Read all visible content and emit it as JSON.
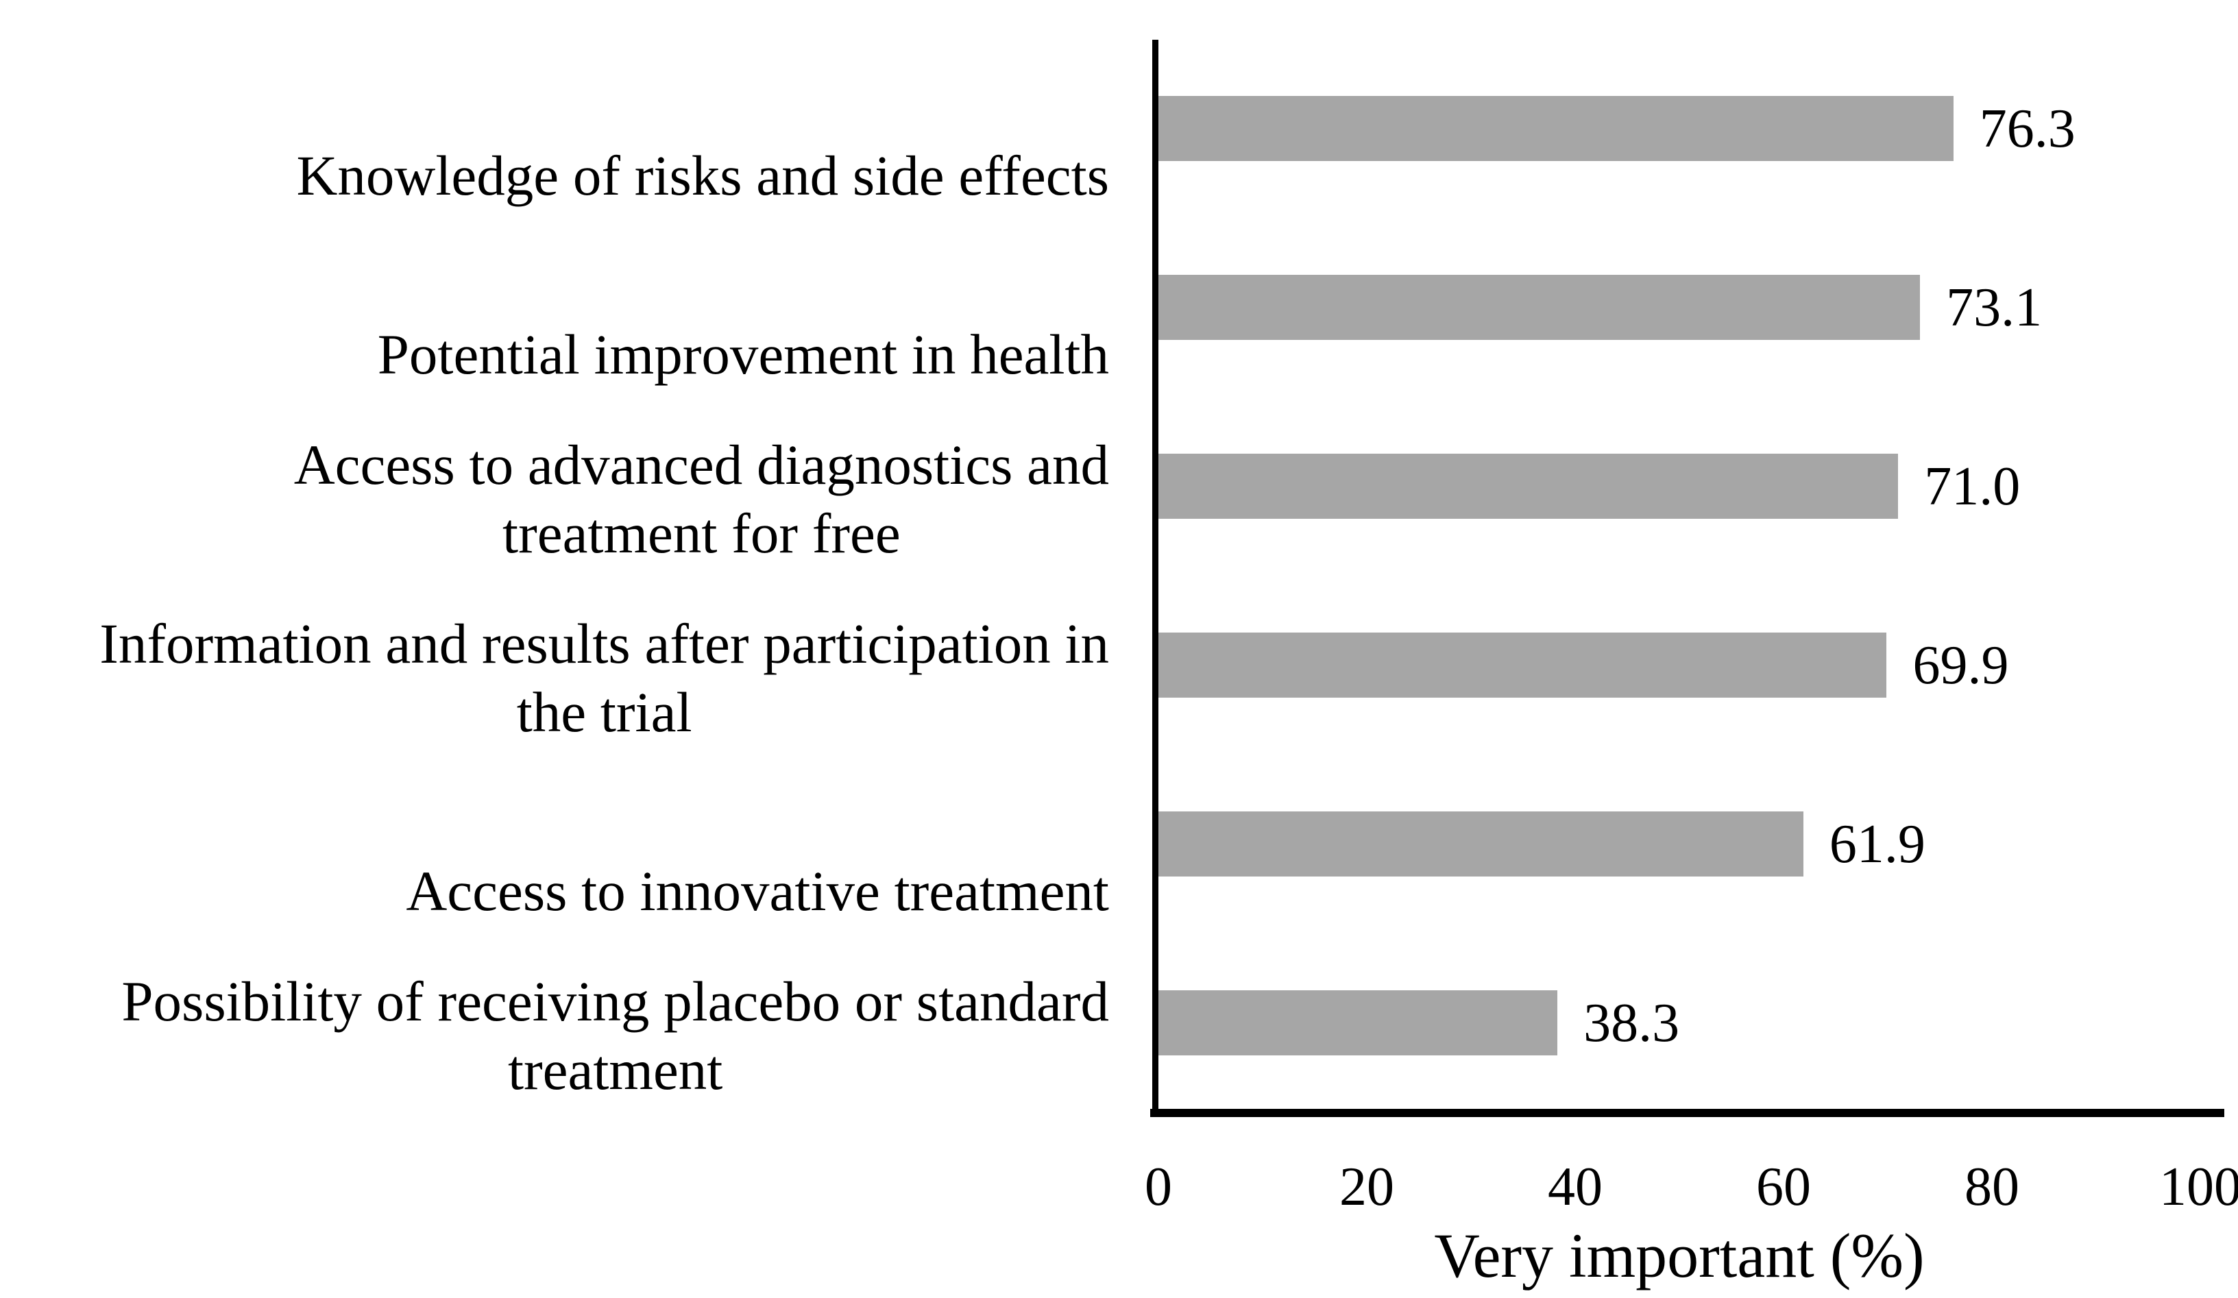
{
  "chart_data": {
    "type": "bar",
    "orientation": "horizontal",
    "title": "",
    "xlabel": "Very important (%)",
    "ylabel": "",
    "xlim": [
      0,
      100
    ],
    "xticks": [
      0,
      20,
      40,
      60,
      80,
      100
    ],
    "grid": false,
    "legend": false,
    "bar_color": "#a6a6a6",
    "axis_color": "#000000",
    "text_color": "#000000",
    "background": "#ffffff",
    "categories": [
      "Knowledge of risks and side effects",
      "Potential improvement in health",
      "Access to advanced diagnostics and\ntreatment for free",
      "Information and results after participation in\nthe trial",
      "Access to innovative treatment",
      "Possibility of receiving placebo or standard\ntreatment"
    ],
    "values": [
      76.3,
      73.1,
      71.0,
      69.9,
      61.9,
      38.3
    ],
    "value_labels": [
      "76.3",
      "73.1",
      "71.0",
      "69.9",
      "61.9",
      "38.3"
    ]
  }
}
